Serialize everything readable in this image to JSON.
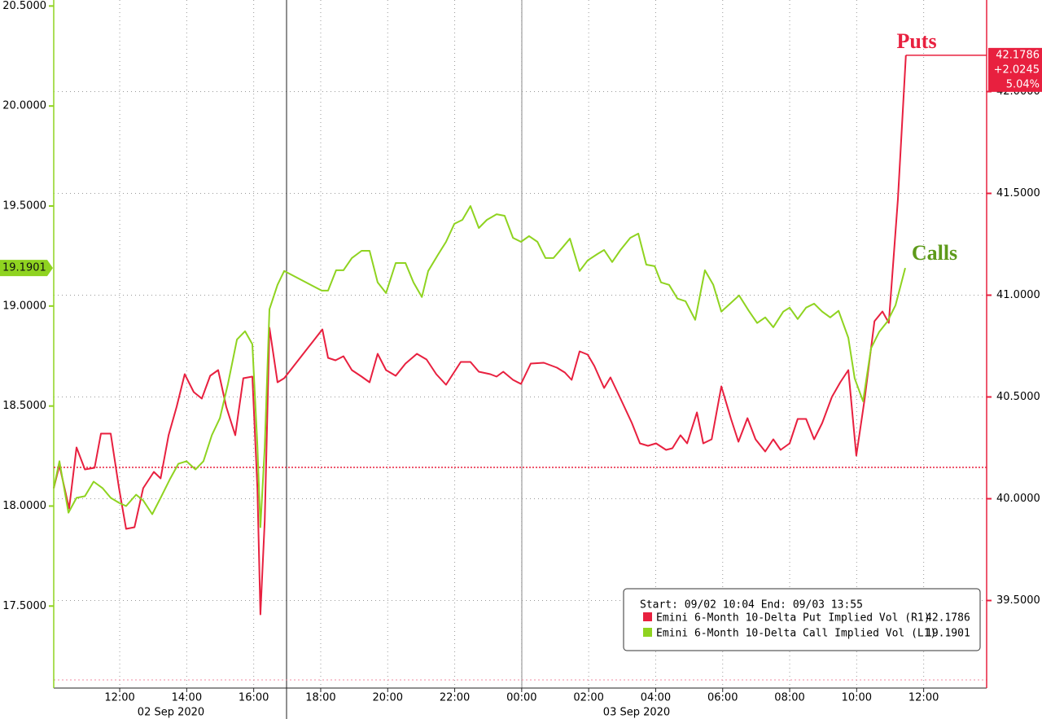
{
  "chart_data": {
    "type": "line",
    "annotations": [
      "Puts",
      "Calls"
    ],
    "legend_header": "Start: 09/02 10:04 End: 09/03 13:55",
    "day_labels": [
      "02 Sep 2020",
      "03 Sep 2020"
    ],
    "xlim": [
      10.03,
      37.88
    ],
    "xticks": [
      {
        "value": 12,
        "label": "12:00"
      },
      {
        "value": 14,
        "label": "14:00"
      },
      {
        "value": 16,
        "label": "16:00"
      },
      {
        "value": 18,
        "label": "18:00"
      },
      {
        "value": 20,
        "label": "20:00"
      },
      {
        "value": 22,
        "label": "22:00"
      },
      {
        "value": 24,
        "label": "00:00"
      },
      {
        "value": 26,
        "label": "02:00"
      },
      {
        "value": 28,
        "label": "04:00"
      },
      {
        "value": 30,
        "label": "06:00"
      },
      {
        "value": 32,
        "label": "08:00"
      },
      {
        "value": 34,
        "label": "10:00"
      },
      {
        "value": 36,
        "label": "12:00"
      }
    ],
    "ylim": [
      17.09,
      20.53
    ],
    "yticks": [
      {
        "value": 17.5,
        "label": "17.5000"
      },
      {
        "value": 18,
        "label": "18.0000"
      },
      {
        "value": 18.5,
        "label": "18.5000"
      },
      {
        "value": 19,
        "label": "19.0000"
      },
      {
        "value": 19.5,
        "label": "19.5000"
      },
      {
        "value": 20,
        "label": "20.0000"
      },
      {
        "value": 20.5,
        "label": "20.5000"
      }
    ],
    "y2lim": [
      39.07,
      42.45
    ],
    "y2ticks": [
      {
        "value": 39.5,
        "label": "39.5000"
      },
      {
        "value": 40,
        "label": "40.0000"
      },
      {
        "value": 40.5,
        "label": "40.5000"
      },
      {
        "value": 41,
        "label": "41.0000"
      },
      {
        "value": 41.5,
        "label": "41.5000"
      },
      {
        "value": 42,
        "label": "42.0000"
      }
    ],
    "grid": true,
    "y2_reference": 40.1541,
    "series": [
      {
        "name": "Emini 6-Month 10-Delta Put Implied Vol (R1)",
        "color": "#e8203f",
        "axis": "y2",
        "last": 42.1786,
        "change": "+2.0245",
        "change_pct": "5.04%",
        "x": [
          10.03,
          10.2,
          10.49,
          10.71,
          10.96,
          11.25,
          11.44,
          11.73,
          11.98,
          12.19,
          12.44,
          12.7,
          13.02,
          13.22,
          13.46,
          13.7,
          13.94,
          14.21,
          14.45,
          14.7,
          14.94,
          15.18,
          15.45,
          15.69,
          15.96,
          16.11,
          16.2,
          16.33,
          16.47,
          16.71,
          16.91,
          18.05,
          18.22,
          18.44,
          18.68,
          18.93,
          19.22,
          19.46,
          19.7,
          19.95,
          20.24,
          20.53,
          20.87,
          21.16,
          21.45,
          21.74,
          22.18,
          22.47,
          22.72,
          23.06,
          23.25,
          23.45,
          23.74,
          23.98,
          24.27,
          24.66,
          25.05,
          25.29,
          25.49,
          25.73,
          25.97,
          26.17,
          26.46,
          26.65,
          26.95,
          27.29,
          27.53,
          27.77,
          28.01,
          28.31,
          28.5,
          28.74,
          28.94,
          29.23,
          29.42,
          29.67,
          29.96,
          30.25,
          30.47,
          30.74,
          30.98,
          31.27,
          31.51,
          31.73,
          32.0,
          32.24,
          32.49,
          32.73,
          32.97,
          33.26,
          33.51,
          33.75,
          33.99,
          34.24,
          34.53,
          34.77,
          34.96,
          35.23,
          35.47
        ],
        "values": [
          40.052,
          40.164,
          39.952,
          40.252,
          40.144,
          40.152,
          40.32,
          40.32,
          40.052,
          39.852,
          39.86,
          40.052,
          40.132,
          40.1,
          40.312,
          40.452,
          40.612,
          40.524,
          40.492,
          40.604,
          40.632,
          40.452,
          40.312,
          40.592,
          40.6,
          40.052,
          39.432,
          39.892,
          40.84,
          40.572,
          40.592,
          40.832,
          40.692,
          40.68,
          40.7,
          40.632,
          40.6,
          40.572,
          40.712,
          40.632,
          40.604,
          40.664,
          40.712,
          40.684,
          40.612,
          40.56,
          40.672,
          40.672,
          40.624,
          40.612,
          40.6,
          40.624,
          40.584,
          40.564,
          40.664,
          40.668,
          40.644,
          40.62,
          40.584,
          40.724,
          40.708,
          40.652,
          40.544,
          40.596,
          40.492,
          40.372,
          40.272,
          40.26,
          40.272,
          40.24,
          40.248,
          40.312,
          40.272,
          40.424,
          40.272,
          40.292,
          40.552,
          40.392,
          40.28,
          40.396,
          40.292,
          40.232,
          40.292,
          40.24,
          40.272,
          40.392,
          40.392,
          40.292,
          40.372,
          40.5,
          40.572,
          40.632,
          40.212,
          40.492,
          40.872,
          40.92,
          40.864,
          41.472,
          42.1786
        ]
      },
      {
        "name": "Emini 6-Month 10-Delta Call Implied Vol (L1)",
        "color": "#8fd320",
        "axis": "y",
        "last": 19.1901,
        "x": [
          10.03,
          10.2,
          10.47,
          10.71,
          10.96,
          11.22,
          11.49,
          11.73,
          11.98,
          12.19,
          12.49,
          12.7,
          12.97,
          13.22,
          13.51,
          13.75,
          13.99,
          14.26,
          14.5,
          14.75,
          14.99,
          15.23,
          15.5,
          15.74,
          15.96,
          16.11,
          16.2,
          16.33,
          16.47,
          16.71,
          16.91,
          18.03,
          18.22,
          18.46,
          18.68,
          18.93,
          19.22,
          19.46,
          19.7,
          19.95,
          20.24,
          20.53,
          20.77,
          21.02,
          21.21,
          21.5,
          21.74,
          21.99,
          22.23,
          22.47,
          22.72,
          22.96,
          23.25,
          23.49,
          23.74,
          23.98,
          24.22,
          24.47,
          24.71,
          24.95,
          25.2,
          25.44,
          25.73,
          25.97,
          26.26,
          26.46,
          26.7,
          26.95,
          27.24,
          27.48,
          27.72,
          27.97,
          28.16,
          28.4,
          28.65,
          28.89,
          29.18,
          29.47,
          29.72,
          29.96,
          30.25,
          30.49,
          30.78,
          31.03,
          31.27,
          31.51,
          31.81,
          32.0,
          32.24,
          32.49,
          32.73,
          32.97,
          33.21,
          33.46,
          33.75,
          33.94,
          34.19,
          34.43,
          34.67,
          34.92,
          35.16,
          35.45
        ],
        "values": [
          18.089,
          18.224,
          17.967,
          18.041,
          18.049,
          18.122,
          18.089,
          18.041,
          18.016,
          18.0,
          18.057,
          18.028,
          17.959,
          18.041,
          18.138,
          18.211,
          18.224,
          18.183,
          18.224,
          18.354,
          18.439,
          18.61,
          18.833,
          18.874,
          18.809,
          18.301,
          17.894,
          18.293,
          18.984,
          19.106,
          19.175,
          19.077,
          19.077,
          19.179,
          19.179,
          19.24,
          19.276,
          19.276,
          19.118,
          19.065,
          19.215,
          19.215,
          19.118,
          19.045,
          19.175,
          19.256,
          19.321,
          19.411,
          19.431,
          19.5,
          19.39,
          19.431,
          19.459,
          19.451,
          19.341,
          19.321,
          19.35,
          19.321,
          19.24,
          19.24,
          19.289,
          19.337,
          19.175,
          19.228,
          19.26,
          19.28,
          19.22,
          19.28,
          19.341,
          19.362,
          19.207,
          19.199,
          19.118,
          19.106,
          19.037,
          19.024,
          18.931,
          19.179,
          19.106,
          18.972,
          19.016,
          19.053,
          18.976,
          18.915,
          18.943,
          18.894,
          18.972,
          18.992,
          18.935,
          18.992,
          19.012,
          18.972,
          18.943,
          18.976,
          18.841,
          18.638,
          18.524,
          18.789,
          18.87,
          18.923,
          19.004,
          19.1901
        ]
      }
    ]
  }
}
